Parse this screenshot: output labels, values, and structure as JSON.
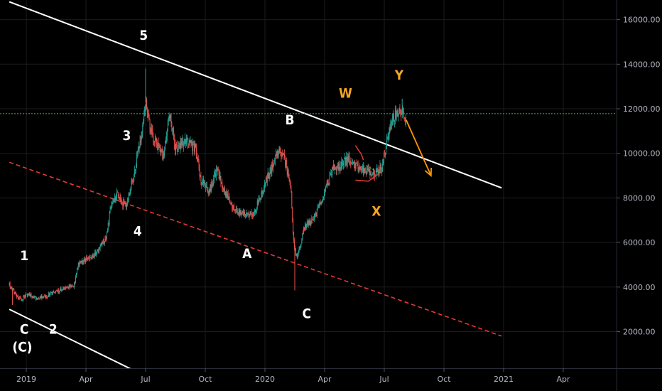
{
  "chart_data": {
    "type": "candlestick",
    "colors": {
      "background": "#000000",
      "grid": "#1c1c1c",
      "up": "#26a69a",
      "down": "#ef5350",
      "channel": "#ffffff",
      "channel_dashed": "#e53935",
      "horizontal_level": "#4caf50",
      "wave_white": "#ffffff",
      "wave_orange": "#f5a623",
      "projection_arrow": "#ff9800",
      "axis_text": "#b2b5be"
    },
    "x_axis": {
      "ticks": [
        {
          "t": 12.0,
          "label": "2019"
        },
        {
          "t": 15.0,
          "label": "Apr"
        },
        {
          "t": 18.0,
          "label": "Jul"
        },
        {
          "t": 21.0,
          "label": "Oct"
        },
        {
          "t": 24.0,
          "label": "2020"
        },
        {
          "t": 27.0,
          "label": "Apr"
        },
        {
          "t": 30.0,
          "label": "Jul"
        },
        {
          "t": 33.0,
          "label": "Oct"
        },
        {
          "t": 36.0,
          "label": "2021"
        },
        {
          "t": 39.0,
          "label": "Apr"
        }
      ]
    },
    "y_axis": {
      "ticks": [
        {
          "v": 2000,
          "label": "2000.00"
        },
        {
          "v": 4000,
          "label": "4000.00"
        },
        {
          "v": 6000,
          "label": "6000.00"
        },
        {
          "v": 8000,
          "label": "8000.00"
        },
        {
          "v": 10000,
          "label": "10000.00"
        },
        {
          "v": 12000,
          "label": "12000.00"
        },
        {
          "v": 14000,
          "label": "14000.00"
        },
        {
          "v": 16000,
          "label": "16000.00"
        }
      ],
      "range": [
        0,
        17500
      ]
    },
    "price_path": [
      {
        "t": 11.15,
        "v": 4100
      },
      {
        "t": 11.5,
        "v": 3650
      },
      {
        "t": 11.75,
        "v": 3400
      },
      {
        "t": 12.0,
        "v": 3700
      },
      {
        "t": 12.5,
        "v": 3500
      },
      {
        "t": 13.0,
        "v": 3600
      },
      {
        "t": 13.5,
        "v": 3800
      },
      {
        "t": 14.0,
        "v": 3950
      },
      {
        "t": 14.4,
        "v": 4050
      },
      {
        "t": 14.6,
        "v": 5000
      },
      {
        "t": 15.0,
        "v": 5250
      },
      {
        "t": 15.5,
        "v": 5500
      },
      {
        "t": 16.0,
        "v": 6200
      },
      {
        "t": 16.3,
        "v": 7800
      },
      {
        "t": 16.6,
        "v": 8200
      },
      {
        "t": 17.0,
        "v": 7600
      },
      {
        "t": 17.4,
        "v": 9000
      },
      {
        "t": 17.8,
        "v": 10900
      },
      {
        "t": 18.0,
        "v": 12300
      },
      {
        "t": 18.25,
        "v": 11000
      },
      {
        "t": 18.5,
        "v": 10500
      },
      {
        "t": 18.9,
        "v": 9800
      },
      {
        "t": 19.2,
        "v": 11800
      },
      {
        "t": 19.5,
        "v": 10200
      },
      {
        "t": 20.0,
        "v": 10600
      },
      {
        "t": 20.5,
        "v": 10200
      },
      {
        "t": 20.8,
        "v": 8800
      },
      {
        "t": 21.2,
        "v": 8300
      },
      {
        "t": 21.6,
        "v": 9300
      },
      {
        "t": 22.0,
        "v": 8200
      },
      {
        "t": 22.5,
        "v": 7400
      },
      {
        "t": 23.0,
        "v": 7200
      },
      {
        "t": 23.5,
        "v": 7400
      },
      {
        "t": 24.0,
        "v": 8700
      },
      {
        "t": 24.5,
        "v": 9700
      },
      {
        "t": 24.75,
        "v": 10200
      },
      {
        "t": 25.0,
        "v": 9700
      },
      {
        "t": 25.3,
        "v": 8500
      },
      {
        "t": 25.45,
        "v": 6000
      },
      {
        "t": 25.6,
        "v": 5300
      },
      {
        "t": 26.0,
        "v": 6700
      },
      {
        "t": 26.5,
        "v": 7100
      },
      {
        "t": 27.0,
        "v": 8200
      },
      {
        "t": 27.4,
        "v": 9300
      },
      {
        "t": 27.8,
        "v": 9500
      },
      {
        "t": 28.2,
        "v": 9700
      },
      {
        "t": 28.6,
        "v": 9400
      },
      {
        "t": 29.0,
        "v": 9200
      },
      {
        "t": 29.5,
        "v": 9100
      },
      {
        "t": 29.9,
        "v": 9400
      },
      {
        "t": 30.2,
        "v": 10900
      },
      {
        "t": 30.5,
        "v": 11700
      },
      {
        "t": 30.8,
        "v": 11900
      },
      {
        "t": 31.1,
        "v": 11600
      }
    ],
    "spikes": [
      {
        "t": 18.0,
        "v": 13800
      },
      {
        "t": 25.5,
        "v": 3850
      },
      {
        "t": 30.9,
        "v": 12450
      },
      {
        "t": 11.3,
        "v": 3200
      }
    ],
    "channel_upper": [
      {
        "t": 11.15,
        "v": 16800
      },
      {
        "t": 35.9,
        "v": 8450
      }
    ],
    "channel_lower": [
      {
        "t": 11.15,
        "v": 3000
      },
      {
        "t": 18.0,
        "v": 0
      }
    ],
    "channel_dashed": [
      {
        "t": 11.15,
        "v": 9600
      },
      {
        "t": 35.9,
        "v": 1800
      }
    ],
    "horizontal_level": 11780,
    "wxy_markers": {
      "w_path": [
        {
          "t": 28.55,
          "v": 10350
        },
        {
          "t": 28.85,
          "v": 9950
        },
        {
          "t": 28.95,
          "v": 9700
        }
      ],
      "x_path": [
        {
          "t": 28.55,
          "v": 8800
        },
        {
          "t": 29.2,
          "v": 8750
        },
        {
          "t": 29.6,
          "v": 9000
        },
        {
          "t": 29.85,
          "v": 9200
        }
      ],
      "dash_path": [
        {
          "t": 29.1,
          "v": 9450
        },
        {
          "t": 29.6,
          "v": 9200
        },
        {
          "t": 29.85,
          "v": 9100
        }
      ]
    },
    "projection_arrow": [
      {
        "t": 31.1,
        "v": 11500
      },
      {
        "t": 32.35,
        "v": 9000
      }
    ],
    "wave_labels": [
      {
        "text": "5",
        "t": 17.9,
        "v": 15100,
        "color": "white"
      },
      {
        "text": "3",
        "t": 17.05,
        "v": 10600,
        "color": "white"
      },
      {
        "text": "4",
        "t": 17.6,
        "v": 6300,
        "color": "white"
      },
      {
        "text": "1",
        "t": 11.9,
        "v": 5200,
        "color": "white"
      },
      {
        "text": "2",
        "t": 13.35,
        "v": 1900,
        "color": "white"
      },
      {
        "text": "C",
        "t": 11.9,
        "v": 1900,
        "color": "white"
      },
      {
        "text": "(C)",
        "t": 11.8,
        "v": 1100,
        "color": "white"
      },
      {
        "text": "A",
        "t": 23.1,
        "v": 5300,
        "color": "white"
      },
      {
        "text": "B",
        "t": 25.25,
        "v": 11300,
        "color": "white"
      },
      {
        "text": "C",
        "t": 26.1,
        "v": 2600,
        "color": "white"
      },
      {
        "text": "W",
        "t": 28.05,
        "v": 12500,
        "color": "orange"
      },
      {
        "text": "X",
        "t": 29.6,
        "v": 7200,
        "color": "orange"
      },
      {
        "text": "Y",
        "t": 30.75,
        "v": 13300,
        "color": "orange"
      }
    ]
  }
}
